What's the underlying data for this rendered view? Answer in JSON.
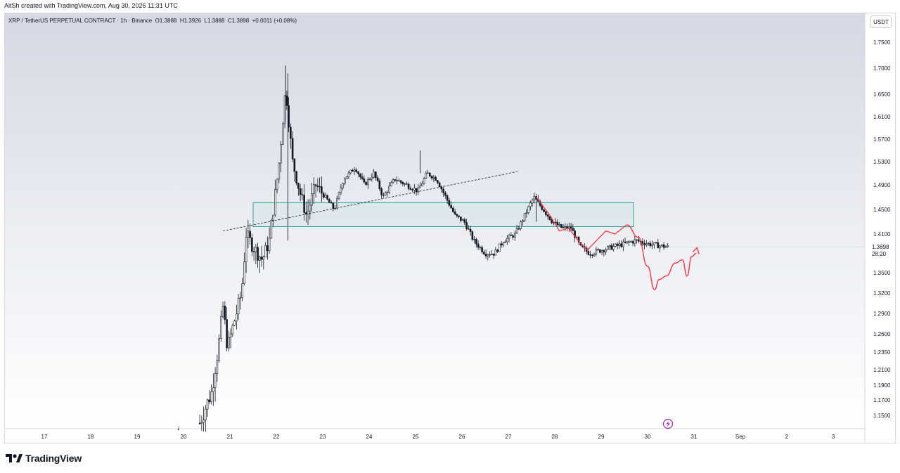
{
  "header": {
    "credit": "AltSh created with TradingView.com, Aug 30, 2026 11:31 UTC"
  },
  "legend": {
    "symbol": "XRP / TetherUS PERPETUAL CONTRACT · 1h · Binance",
    "open_label": "O",
    "open": "1.3888",
    "high_label": "H",
    "high": "1.3926",
    "low_label": "L",
    "low": "1.3888",
    "close_label": "C",
    "close": "1.3898",
    "change": "+0.0011 (+0.08%)"
  },
  "currency": "USDT",
  "last_price": {
    "value": "1.3898",
    "countdown": "28:20"
  },
  "brand": {
    "name": "TradingView"
  },
  "colors": {
    "candle": "#131722",
    "zone_border": "#26a69a",
    "projection": "#f23645",
    "background_top": "#d8dae3",
    "background_bottom": "#ffffff",
    "lightning": "#9c27b0"
  },
  "chart_data": {
    "type": "candlestick",
    "timeframe": "1h",
    "x_ticks": [
      "17",
      "18",
      "19",
      "20",
      "21",
      "22",
      "23",
      "24",
      "25",
      "26",
      "27",
      "28",
      "29",
      "30",
      "31",
      "Sep",
      "2",
      "3"
    ],
    "y_ticks": [
      "1.7500",
      "1.7000",
      "1.6500",
      "1.6100",
      "1.5700",
      "1.5300",
      "1.4900",
      "1.4500",
      "1.4100",
      "1.3500",
      "1.3200",
      "1.2900",
      "1.2600",
      "1.2350",
      "1.2100",
      "1.1900",
      "1.1700",
      "1.1500"
    ],
    "y_values": [
      1.75,
      1.7,
      1.65,
      1.61,
      1.57,
      1.53,
      1.49,
      1.45,
      1.41,
      1.35,
      1.32,
      1.29,
      1.26,
      1.235,
      1.21,
      1.19,
      1.17,
      1.15
    ],
    "series_path": [
      [
        20.35,
        1.14
      ],
      [
        20.6,
        1.18
      ],
      [
        20.75,
        1.24
      ],
      [
        20.85,
        1.3
      ],
      [
        20.95,
        1.24
      ],
      [
        21.1,
        1.28
      ],
      [
        21.25,
        1.32
      ],
      [
        21.35,
        1.41
      ],
      [
        21.5,
        1.39
      ],
      [
        21.7,
        1.37
      ],
      [
        21.85,
        1.4
      ],
      [
        21.95,
        1.46
      ],
      [
        22.05,
        1.52
      ],
      [
        22.2,
        1.66
      ],
      [
        22.35,
        1.53
      ],
      [
        22.5,
        1.48
      ],
      [
        22.65,
        1.44
      ],
      [
        22.85,
        1.49
      ],
      [
        23.05,
        1.47
      ],
      [
        23.25,
        1.45
      ],
      [
        23.45,
        1.5
      ],
      [
        23.7,
        1.52
      ],
      [
        23.9,
        1.49
      ],
      [
        24.1,
        1.51
      ],
      [
        24.3,
        1.47
      ],
      [
        24.55,
        1.5
      ],
      [
        24.8,
        1.49
      ],
      [
        25.05,
        1.48
      ],
      [
        25.25,
        1.51
      ],
      [
        25.45,
        1.5
      ],
      [
        25.65,
        1.47
      ],
      [
        25.85,
        1.44
      ],
      [
        26.05,
        1.43
      ],
      [
        26.25,
        1.4
      ],
      [
        26.5,
        1.38
      ],
      [
        26.7,
        1.38
      ],
      [
        26.9,
        1.4
      ],
      [
        27.15,
        1.41
      ],
      [
        27.35,
        1.44
      ],
      [
        27.55,
        1.47
      ],
      [
        27.75,
        1.45
      ],
      [
        27.95,
        1.43
      ],
      [
        28.15,
        1.42
      ],
      [
        28.35,
        1.42
      ],
      [
        28.55,
        1.39
      ],
      [
        28.75,
        1.38
      ],
      [
        29.0,
        1.385
      ],
      [
        29.25,
        1.39
      ],
      [
        29.5,
        1.395
      ],
      [
        29.75,
        1.4
      ],
      [
        30.0,
        1.395
      ],
      [
        30.25,
        1.392
      ],
      [
        30.45,
        1.3898
      ]
    ],
    "trendline": [
      [
        20.85,
        1.415
      ],
      [
        27.2,
        1.513
      ]
    ],
    "zone": {
      "x": [
        21.5,
        29.7
      ],
      "y": [
        1.422,
        1.461
      ]
    },
    "projection": [
      [
        29.55,
        1.425
      ],
      [
        29.8,
        1.405
      ],
      [
        30.0,
        1.36
      ],
      [
        30.15,
        1.325
      ],
      [
        30.25,
        1.34
      ],
      [
        30.4,
        1.345
      ],
      [
        30.6,
        1.365
      ],
      [
        30.75,
        1.37
      ],
      [
        30.85,
        1.345
      ],
      [
        30.95,
        1.375
      ],
      [
        31.05,
        1.38
      ]
    ],
    "last_price": 1.3898
  }
}
